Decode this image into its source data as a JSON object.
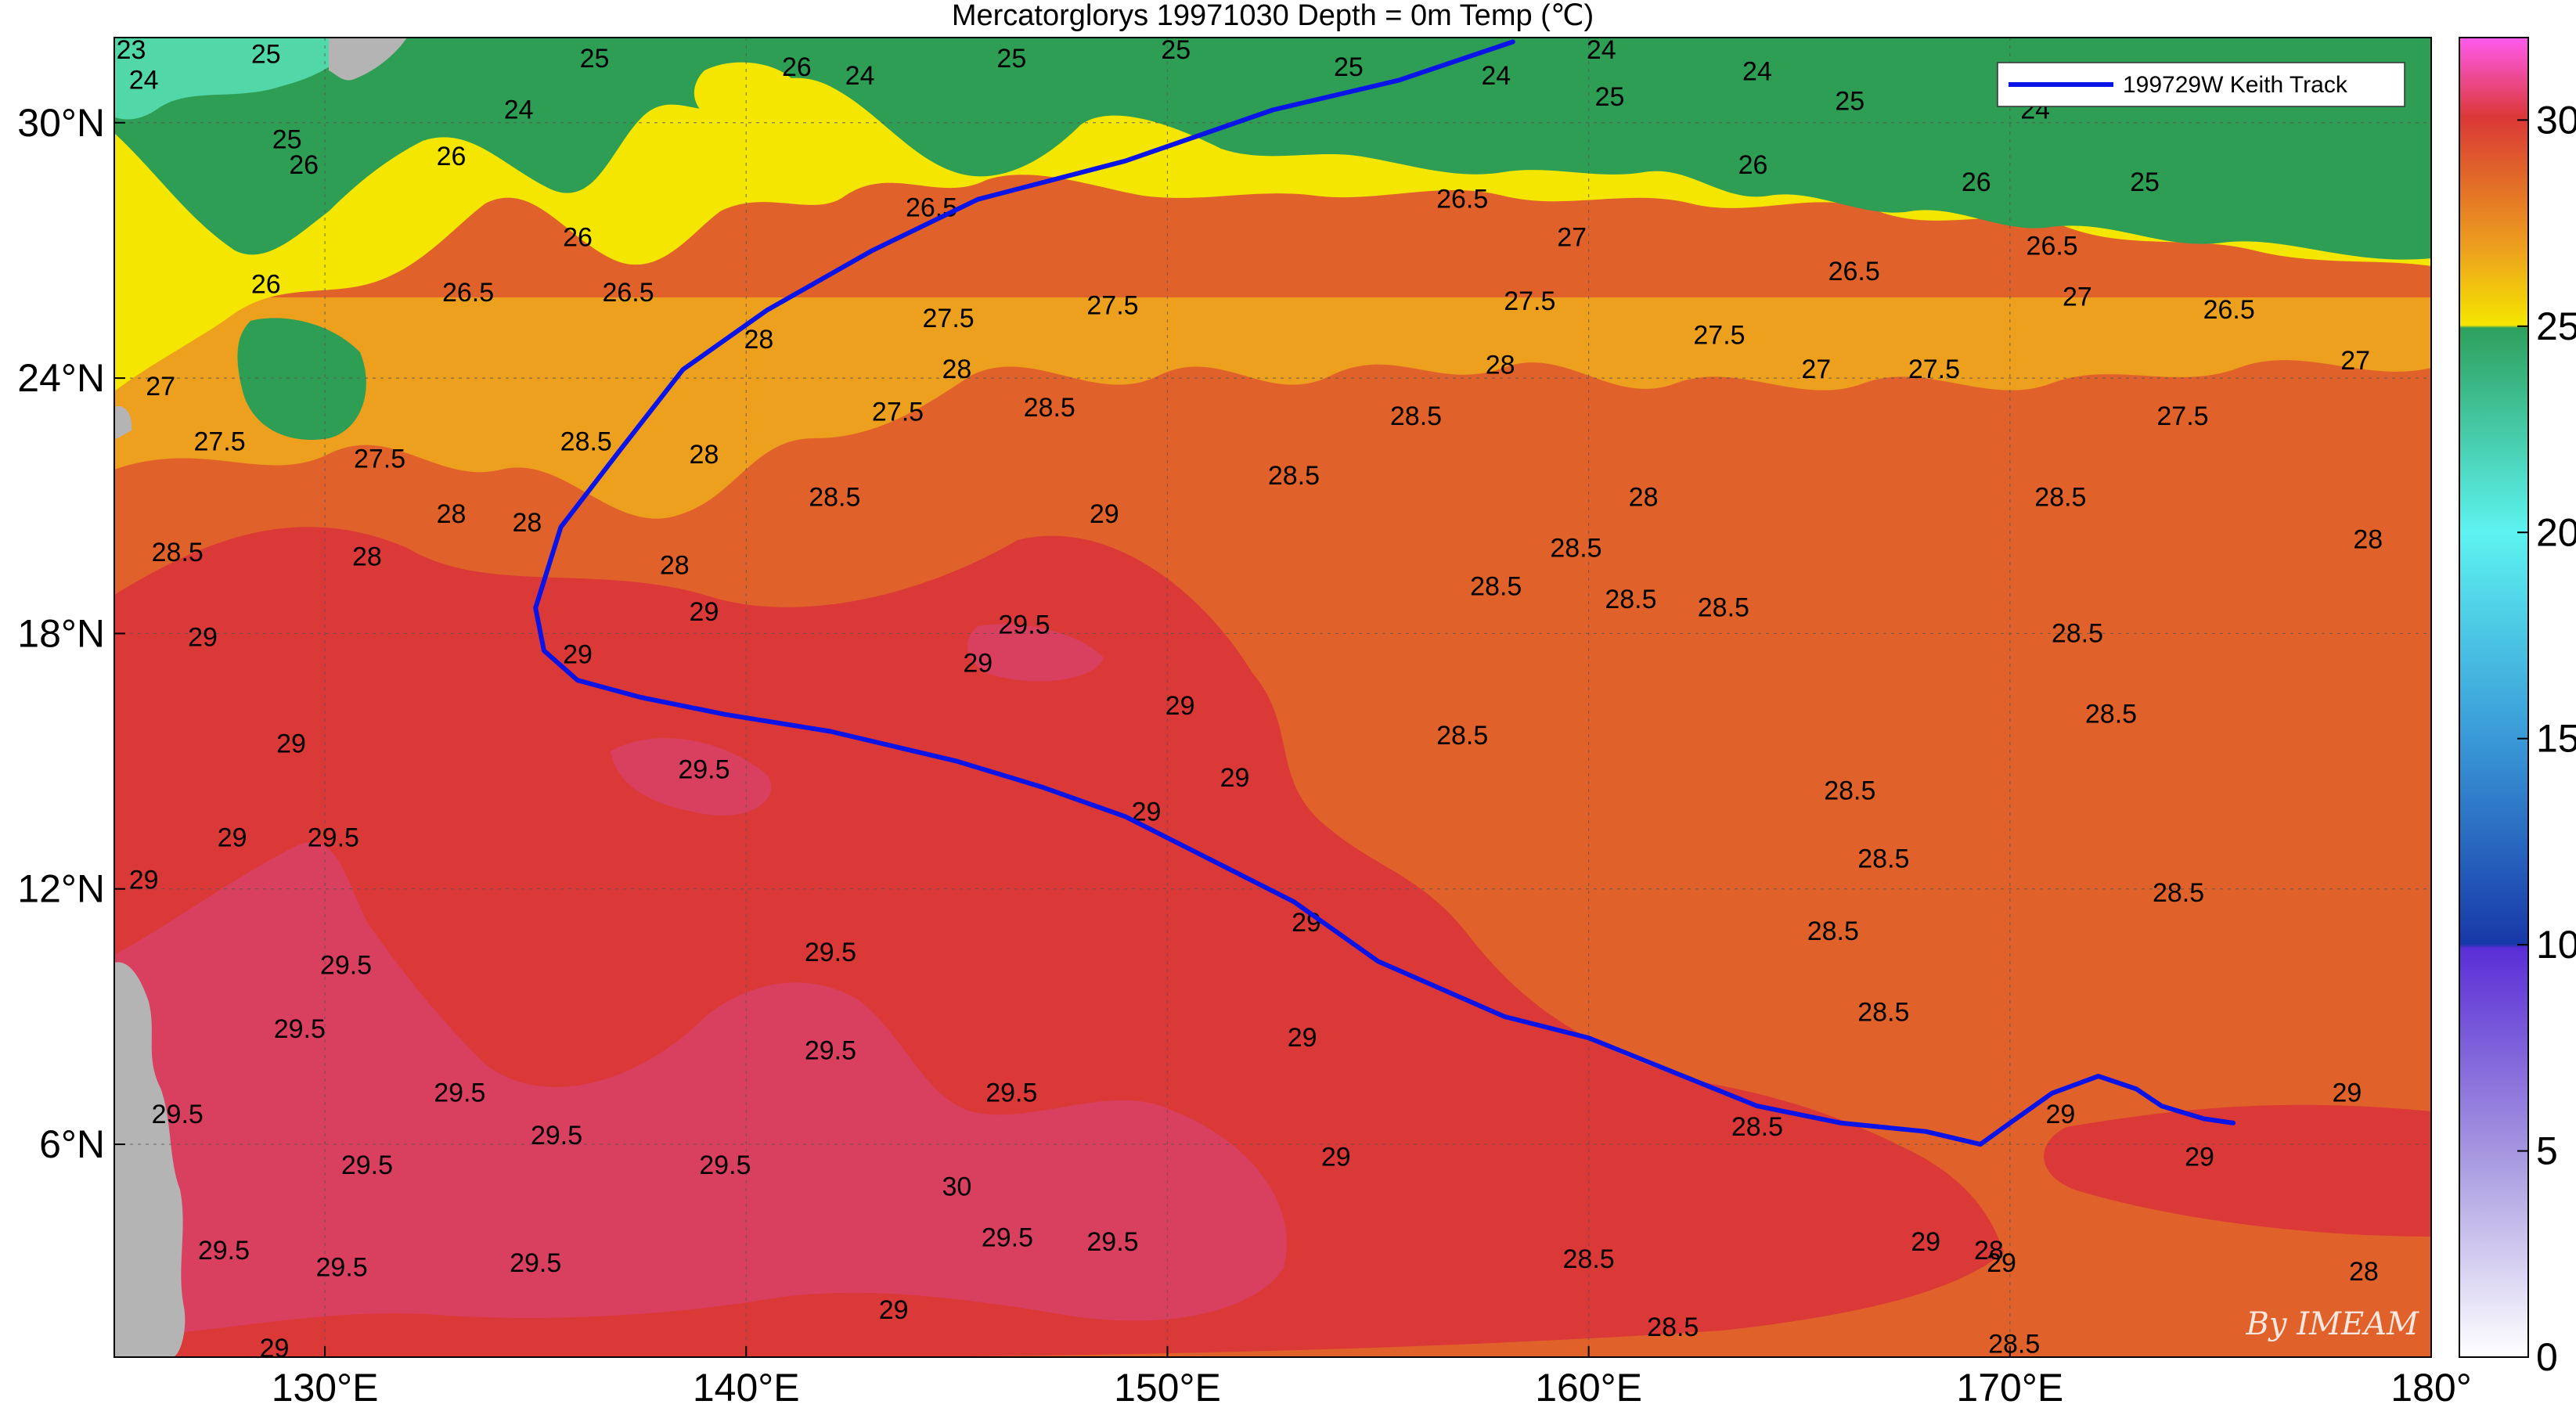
{
  "title": "Mercatorglorys 19971030 Depth = 0m Temp (℃)",
  "map": {
    "lon_range": [
      125,
      180
    ],
    "lat_range": [
      1,
      32
    ],
    "lon_ticks": [
      {
        "value": 130,
        "label": "130°E"
      },
      {
        "value": 140,
        "label": "140°E"
      },
      {
        "value": 150,
        "label": "150°E"
      },
      {
        "value": 160,
        "label": "160°E"
      },
      {
        "value": 170,
        "label": "170°E"
      },
      {
        "value": 180,
        "label": "180°"
      }
    ],
    "lat_ticks": [
      {
        "value": 6,
        "label": "6°N"
      },
      {
        "value": 12,
        "label": "12°N"
      },
      {
        "value": 18,
        "label": "18°N"
      },
      {
        "value": 24,
        "label": "24°N"
      },
      {
        "value": 30,
        "label": "30°N"
      }
    ],
    "grid": true
  },
  "colorbar": {
    "range": [
      0,
      32
    ],
    "ticks": [
      {
        "value": 0,
        "label": "0"
      },
      {
        "value": 5,
        "label": "5"
      },
      {
        "value": 10,
        "label": "10"
      },
      {
        "value": 15,
        "label": "15"
      },
      {
        "value": 20,
        "label": "20"
      },
      {
        "value": 25,
        "label": "25"
      },
      {
        "value": 30,
        "label": "30"
      }
    ]
  },
  "colors": {
    "land": "#b4b4b4",
    "track": "#0a14e6",
    "t_below_25": "#52d7a8",
    "t_25_26": "#2e9e54",
    "t_26_27": "#f5e600",
    "t_27_28": "#eda01e",
    "t_28_29": "#e0622a",
    "t_29_29_5": "#db3838",
    "t_above_29_5": "#d94060"
  },
  "legend": {
    "position": "top-right",
    "label": "199729W Keith Track"
  },
  "track": {
    "name": "199729W Keith Track",
    "points": [
      [
        175.3,
        6.5
      ],
      [
        174.6,
        6.6
      ],
      [
        173.6,
        6.9
      ],
      [
        173.0,
        7.3
      ],
      [
        172.1,
        7.6
      ],
      [
        171.0,
        7.2
      ],
      [
        170.0,
        6.5
      ],
      [
        169.3,
        6.0
      ],
      [
        168.0,
        6.3
      ],
      [
        166.0,
        6.5
      ],
      [
        164.0,
        6.9
      ],
      [
        162.0,
        7.7
      ],
      [
        160.0,
        8.5
      ],
      [
        158.0,
        9.0
      ],
      [
        155.0,
        10.3
      ],
      [
        153.0,
        11.7
      ],
      [
        151.0,
        12.7
      ],
      [
        149.0,
        13.7
      ],
      [
        147.0,
        14.4
      ],
      [
        145.0,
        15.0
      ],
      [
        142.0,
        15.7
      ],
      [
        139.5,
        16.1
      ],
      [
        137.5,
        16.5
      ],
      [
        136.0,
        16.9
      ],
      [
        135.2,
        17.6
      ],
      [
        135.0,
        18.6
      ],
      [
        135.6,
        20.5
      ],
      [
        137.0,
        22.3
      ],
      [
        138.5,
        24.2
      ],
      [
        140.5,
        25.6
      ],
      [
        143.0,
        27.0
      ],
      [
        145.5,
        28.2
      ],
      [
        149.0,
        29.1
      ],
      [
        152.5,
        30.3
      ],
      [
        155.5,
        31.0
      ],
      [
        158.2,
        31.9
      ]
    ]
  },
  "contour_labels": [
    {
      "value": "23",
      "lon": 125.4,
      "lat": 31.5
    },
    {
      "value": "24",
      "lon": 125.7,
      "lat": 30.8
    },
    {
      "value": "25",
      "lon": 128.6,
      "lat": 31.4
    },
    {
      "value": "25",
      "lon": 129.1,
      "lat": 29.4
    },
    {
      "value": "24",
      "lon": 134.6,
      "lat": 30.1
    },
    {
      "value": "25",
      "lon": 136.4,
      "lat": 31.3
    },
    {
      "value": "26",
      "lon": 129.5,
      "lat": 28.8
    },
    {
      "value": "26",
      "lon": 133.0,
      "lat": 29.0
    },
    {
      "value": "26",
      "lon": 128.6,
      "lat": 26.0
    },
    {
      "value": "26.5",
      "lon": 133.4,
      "lat": 25.8
    },
    {
      "value": "26",
      "lon": 136.0,
      "lat": 27.1
    },
    {
      "value": "26.5",
      "lon": 137.2,
      "lat": 25.8
    },
    {
      "value": "26",
      "lon": 141.2,
      "lat": 31.1
    },
    {
      "value": "24",
      "lon": 142.7,
      "lat": 30.9
    },
    {
      "value": "25",
      "lon": 146.3,
      "lat": 31.3
    },
    {
      "value": "25",
      "lon": 150.2,
      "lat": 31.5
    },
    {
      "value": "25",
      "lon": 154.3,
      "lat": 31.1
    },
    {
      "value": "24",
      "lon": 157.8,
      "lat": 30.9
    },
    {
      "value": "24",
      "lon": 160.3,
      "lat": 31.5
    },
    {
      "value": "25",
      "lon": 160.5,
      "lat": 30.4
    },
    {
      "value": "24",
      "lon": 164.0,
      "lat": 31.0
    },
    {
      "value": "25",
      "lon": 166.2,
      "lat": 30.3
    },
    {
      "value": "24",
      "lon": 170.6,
      "lat": 30.1
    },
    {
      "value": "25",
      "lon": 173.2,
      "lat": 28.4
    },
    {
      "value": "26",
      "lon": 169.2,
      "lat": 28.4
    },
    {
      "value": "26",
      "lon": 163.9,
      "lat": 28.8
    },
    {
      "value": "26.5",
      "lon": 144.4,
      "lat": 27.8
    },
    {
      "value": "26.5",
      "lon": 157.0,
      "lat": 28.0
    },
    {
      "value": "26.5",
      "lon": 166.3,
      "lat": 26.3
    },
    {
      "value": "26.5",
      "lon": 171.0,
      "lat": 26.9
    },
    {
      "value": "26.5",
      "lon": 175.2,
      "lat": 25.4
    },
    {
      "value": "27",
      "lon": 159.6,
      "lat": 27.1
    },
    {
      "value": "27",
      "lon": 171.6,
      "lat": 25.7
    },
    {
      "value": "27",
      "lon": 178.2,
      "lat": 24.2
    },
    {
      "value": "27",
      "lon": 126.1,
      "lat": 23.6
    },
    {
      "value": "27.5",
      "lon": 127.5,
      "lat": 22.3
    },
    {
      "value": "27.5",
      "lon": 131.3,
      "lat": 21.9
    },
    {
      "value": "27.5",
      "lon": 148.7,
      "lat": 25.5
    },
    {
      "value": "27.5",
      "lon": 158.6,
      "lat": 25.6
    },
    {
      "value": "27.5",
      "lon": 163.1,
      "lat": 24.8
    },
    {
      "value": "27.5",
      "lon": 168.2,
      "lat": 24.0
    },
    {
      "value": "27.5",
      "lon": 174.1,
      "lat": 22.9
    },
    {
      "value": "27",
      "lon": 165.4,
      "lat": 24.0
    },
    {
      "value": "27.5",
      "lon": 143.6,
      "lat": 23.0
    },
    {
      "value": "27.5",
      "lon": 144.8,
      "lat": 25.2
    },
    {
      "value": "28",
      "lon": 145.0,
      "lat": 24.0
    },
    {
      "value": "28",
      "lon": 139.0,
      "lat": 22.0
    },
    {
      "value": "28",
      "lon": 140.3,
      "lat": 24.7
    },
    {
      "value": "28",
      "lon": 131.0,
      "lat": 19.6
    },
    {
      "value": "28",
      "lon": 133.0,
      "lat": 20.6
    },
    {
      "value": "28",
      "lon": 134.8,
      "lat": 20.4
    },
    {
      "value": "28",
      "lon": 138.3,
      "lat": 19.4
    },
    {
      "value": "28",
      "lon": 161.3,
      "lat": 21.0
    },
    {
      "value": "28",
      "lon": 178.5,
      "lat": 20.0
    },
    {
      "value": "28",
      "lon": 157.9,
      "lat": 24.1
    },
    {
      "value": "28.5",
      "lon": 126.5,
      "lat": 19.7
    },
    {
      "value": "28.5",
      "lon": 136.2,
      "lat": 22.3
    },
    {
      "value": "28.5",
      "lon": 142.1,
      "lat": 21.0
    },
    {
      "value": "28.5",
      "lon": 147.2,
      "lat": 23.1
    },
    {
      "value": "28.5",
      "lon": 153.0,
      "lat": 21.5
    },
    {
      "value": "28.5",
      "lon": 155.9,
      "lat": 22.9
    },
    {
      "value": "28.5",
      "lon": 157.8,
      "lat": 18.9
    },
    {
      "value": "28.5",
      "lon": 161.0,
      "lat": 18.6
    },
    {
      "value": "28.5",
      "lon": 159.7,
      "lat": 19.8
    },
    {
      "value": "28.5",
      "lon": 157.0,
      "lat": 15.4
    },
    {
      "value": "28.5",
      "lon": 163.2,
      "lat": 18.4
    },
    {
      "value": "28.5",
      "lon": 166.2,
      "lat": 14.1
    },
    {
      "value": "28.5",
      "lon": 167.0,
      "lat": 12.5
    },
    {
      "value": "28.5",
      "lon": 171.6,
      "lat": 17.8
    },
    {
      "value": "28.5",
      "lon": 172.4,
      "lat": 15.9
    },
    {
      "value": "28.5",
      "lon": 174.0,
      "lat": 11.7
    },
    {
      "value": "28.5",
      "lon": 171.2,
      "lat": 21.0
    },
    {
      "value": "28.5",
      "lon": 165.8,
      "lat": 10.8
    },
    {
      "value": "28.5",
      "lon": 167.0,
      "lat": 8.9
    },
    {
      "value": "28.5",
      "lon": 164.0,
      "lat": 6.2
    },
    {
      "value": "28.5",
      "lon": 160.0,
      "lat": 3.1
    },
    {
      "value": "28.5",
      "lon": 162.0,
      "lat": 1.5
    },
    {
      "value": "28.5",
      "lon": 170.1,
      "lat": 1.1
    },
    {
      "value": "29",
      "lon": 127.1,
      "lat": 17.7
    },
    {
      "value": "29",
      "lon": 127.8,
      "lat": 13.0
    },
    {
      "value": "29",
      "lon": 125.7,
      "lat": 12.0
    },
    {
      "value": "29",
      "lon": 129.2,
      "lat": 15.2
    },
    {
      "value": "29",
      "lon": 136.0,
      "lat": 17.3
    },
    {
      "value": "29",
      "lon": 139.0,
      "lat": 18.3
    },
    {
      "value": "29",
      "lon": 145.5,
      "lat": 17.1
    },
    {
      "value": "29",
      "lon": 150.3,
      "lat": 16.1
    },
    {
      "value": "29",
      "lon": 151.6,
      "lat": 14.4
    },
    {
      "value": "29",
      "lon": 148.5,
      "lat": 20.6
    },
    {
      "value": "29",
      "lon": 149.5,
      "lat": 13.6
    },
    {
      "value": "29",
      "lon": 153.3,
      "lat": 11.0
    },
    {
      "value": "29",
      "lon": 153.2,
      "lat": 8.3
    },
    {
      "value": "29",
      "lon": 154.0,
      "lat": 5.5
    },
    {
      "value": "29",
      "lon": 168.0,
      "lat": 3.5
    },
    {
      "value": "29",
      "lon": 169.8,
      "lat": 3.0
    },
    {
      "value": "29",
      "lon": 171.2,
      "lat": 6.5
    },
    {
      "value": "29",
      "lon": 174.5,
      "lat": 5.5
    },
    {
      "value": "29",
      "lon": 178.0,
      "lat": 7.0
    },
    {
      "value": "29",
      "lon": 143.5,
      "lat": 1.9
    },
    {
      "value": "29",
      "lon": 128.8,
      "lat": 1.0
    },
    {
      "value": "29.5",
      "lon": 139.0,
      "lat": 14.6
    },
    {
      "value": "29.5",
      "lon": 130.2,
      "lat": 13.0
    },
    {
      "value": "29.5",
      "lon": 130.5,
      "lat": 10.0
    },
    {
      "value": "29.5",
      "lon": 142.0,
      "lat": 10.3
    },
    {
      "value": "29.5",
      "lon": 142.0,
      "lat": 8.0
    },
    {
      "value": "29.5",
      "lon": 146.3,
      "lat": 7.0
    },
    {
      "value": "29.5",
      "lon": 146.6,
      "lat": 18.0
    },
    {
      "value": "29.5",
      "lon": 126.5,
      "lat": 6.5
    },
    {
      "value": "29.5",
      "lon": 131.0,
      "lat": 5.3
    },
    {
      "value": "29.5",
      "lon": 127.6,
      "lat": 3.3
    },
    {
      "value": "29.5",
      "lon": 129.4,
      "lat": 8.5
    },
    {
      "value": "29.5",
      "lon": 135.5,
      "lat": 6.0
    },
    {
      "value": "29.5",
      "lon": 139.5,
      "lat": 5.3
    },
    {
      "value": "29.5",
      "lon": 135.0,
      "lat": 3.0
    },
    {
      "value": "29.5",
      "lon": 146.2,
      "lat": 3.6
    },
    {
      "value": "29.5",
      "lon": 148.7,
      "lat": 3.5
    },
    {
      "value": "29.5",
      "lon": 130.4,
      "lat": 2.9
    },
    {
      "value": "29.5",
      "lon": 133.2,
      "lat": 7.0
    },
    {
      "value": "30",
      "lon": 145.0,
      "lat": 4.8
    },
    {
      "value": "28",
      "lon": 169.5,
      "lat": 3.3
    },
    {
      "value": "28",
      "lon": 178.4,
      "lat": 2.8
    }
  ],
  "watermark": "By IMEAM"
}
